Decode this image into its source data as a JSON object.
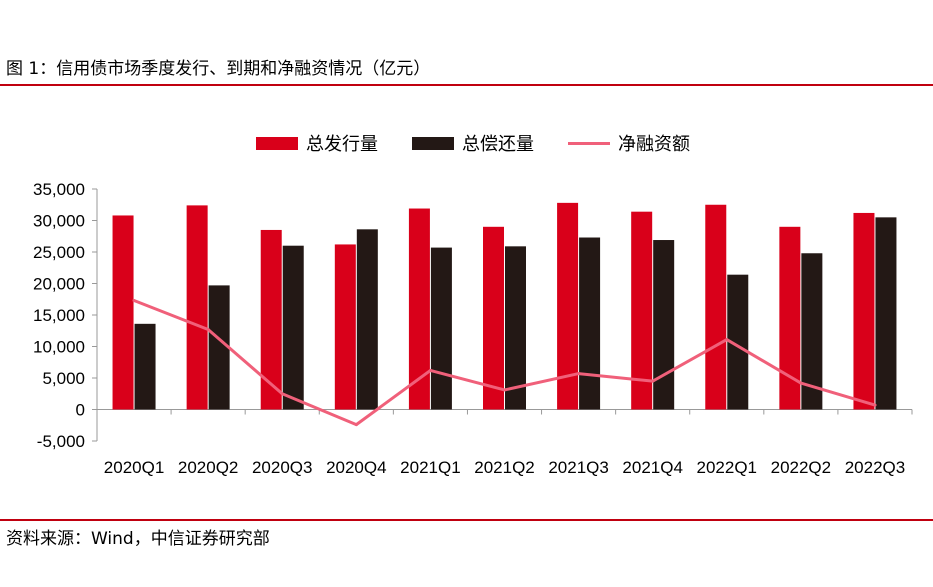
{
  "figure": {
    "title": "图 1：信用债市场季度发行、到期和净融资情况（亿元）",
    "source": "资料来源：Wind，中信证券研究部"
  },
  "colors": {
    "issuance": "#d9001a",
    "repayment": "#231815",
    "net_financing": "#f0607a",
    "rule": "#c0000f",
    "axis": "#999999"
  },
  "chart_data": {
    "type": "bar",
    "title": "",
    "xlabel": "",
    "ylabel": "",
    "categories": [
      "2020Q1",
      "2020Q2",
      "2020Q3",
      "2020Q4",
      "2021Q1",
      "2021Q2",
      "2021Q3",
      "2021Q4",
      "2022Q1",
      "2022Q2",
      "2022Q3"
    ],
    "ylim": [
      -5000,
      35000
    ],
    "yticks": [
      35000,
      30000,
      25000,
      20000,
      15000,
      10000,
      5000,
      0,
      -5000
    ],
    "ytick_labels": [
      "35,000",
      "30,000",
      "25,000",
      "20,000",
      "15,000",
      "10,000",
      "5,000",
      "0",
      "-5,000"
    ],
    "legend_position": "top",
    "grid": false,
    "series": [
      {
        "name": "总发行量",
        "kind": "bar",
        "values": [
          30800,
          32400,
          28500,
          26200,
          31900,
          29000,
          32800,
          31400,
          32500,
          29000,
          31200
        ]
      },
      {
        "name": "总偿还量",
        "kind": "bar",
        "values": [
          13600,
          19700,
          26000,
          28600,
          25700,
          25900,
          27300,
          26900,
          21400,
          24800,
          30500
        ]
      },
      {
        "name": "净融资额",
        "kind": "line",
        "values": [
          17300,
          12700,
          2500,
          -2400,
          6200,
          3100,
          5700,
          4500,
          11100,
          4200,
          700
        ]
      }
    ]
  }
}
